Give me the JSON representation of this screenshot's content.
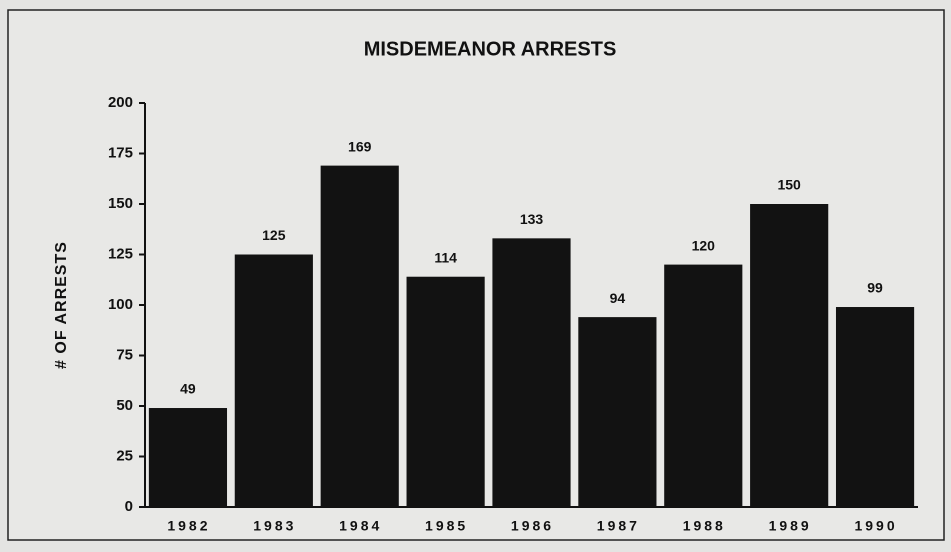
{
  "chart_data": {
    "type": "bar",
    "title": "MISDEMEANOR ARRESTS",
    "y_label": "# OF ARRESTS",
    "categories": [
      "1982",
      "1983",
      "1984",
      "1985",
      "1986",
      "1987",
      "1988",
      "1989",
      "1990"
    ],
    "values": [
      49,
      125,
      169,
      114,
      133,
      94,
      120,
      150,
      99
    ],
    "color": "#121212",
    "ylim": [
      0,
      200
    ],
    "yticks": [
      0,
      25,
      50,
      75,
      100,
      125,
      150,
      175,
      200
    ],
    "grid": false
  }
}
